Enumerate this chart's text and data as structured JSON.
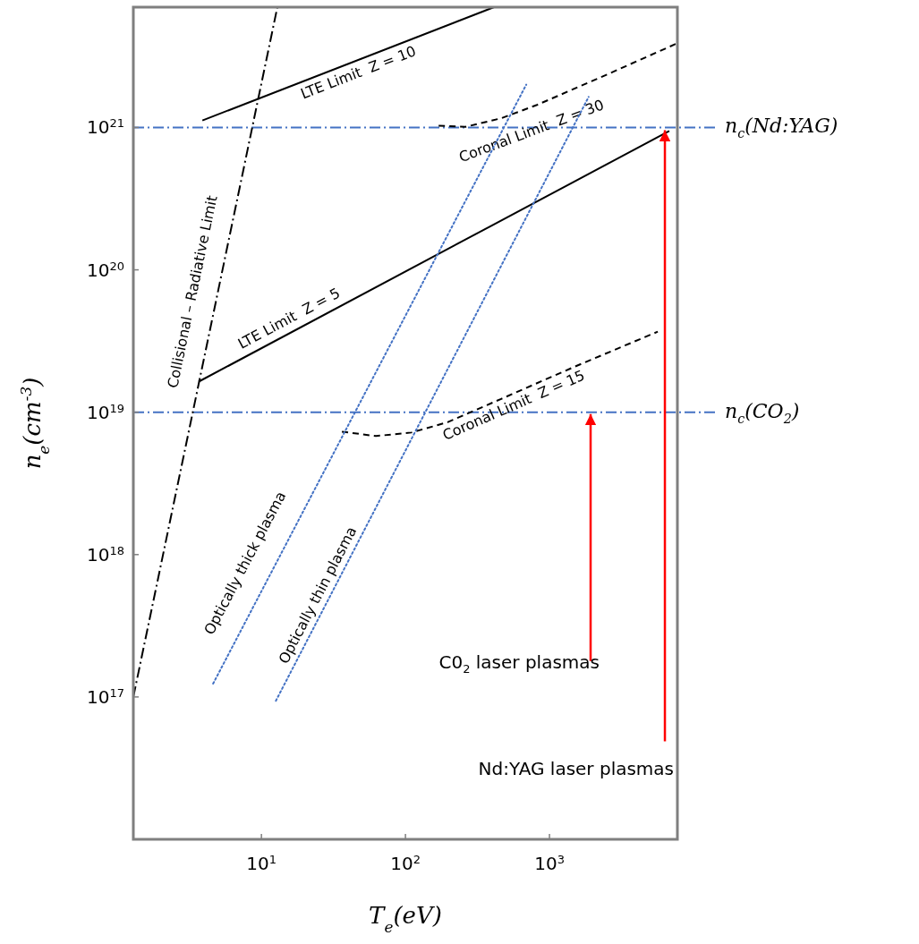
{
  "chart_data": {
    "type": "line",
    "log": "xy",
    "xlabel": "T$_{e}$(eV)",
    "ylabel": "n$_{e}$(cm$^{-3}$)",
    "xlim": [
      1.29,
      7730
    ],
    "ylim": [
      1e+16,
      7e+21
    ],
    "xticks": [
      {
        "value": 10,
        "label": "10$^{1}$"
      },
      {
        "value": 100,
        "label": "10$^{2}$"
      },
      {
        "value": 1000,
        "label": "10$^{3}$"
      }
    ],
    "yticks": [
      {
        "value": 1e+17,
        "label": "10$^{17}$"
      },
      {
        "value": 1e+18,
        "label": "10$^{18}$"
      },
      {
        "value": 1e+19,
        "label": "10$^{19}$"
      },
      {
        "value": 1e+20,
        "label": "10$^{20}$"
      },
      {
        "value": 1e+21,
        "label": "10$^{21}$"
      }
    ],
    "series": [
      {
        "name": "Collisional – Radiative Limit",
        "color": "#000000",
        "line_style": "dashdot",
        "x": [
          1.29,
          12.9
        ],
        "values": [
          1e+17,
          7e+21
        ]
      },
      {
        "name": "LTE Limit  Z = 10",
        "color": "#000000",
        "line_style": "solid",
        "x": [
          3.89,
          412
        ],
        "values": [
          1.12e+21,
          7e+21
        ]
      },
      {
        "name": "LTE Limit  Z = 5",
        "color": "#000000",
        "line_style": "solid",
        "x": [
          3.67,
          6790
        ],
        "values": [
          1.64e+19,
          9.44e+20
        ]
      },
      {
        "name": "Coronal Limit  Z = 30",
        "color": "#000000",
        "line_style": "dashed",
        "x": [
          170,
          261,
          462,
          819,
          2570,
          7700
        ],
        "values": [
          1.03e+21,
          1.01e+21,
          1.16e+21,
          1.44e+21,
          2.38e+21,
          3.9e+21
        ]
      },
      {
        "name": "Coronal Limit  Z = 15",
        "color": "#000000",
        "line_style": "dashed",
        "x": [
          36.2,
          62.4,
          110,
          196,
          462,
          1450,
          5650
        ],
        "values": [
          7.3e+18,
          6.8e+18,
          7.2e+18,
          8.5e+18,
          1.24e+19,
          2.06e+19,
          3.68e+19
        ]
      },
      {
        "name": "Optically thick plasma",
        "color": "#4472c4",
        "line_style": "dotted",
        "x": [
          4.62,
          690
        ],
        "values": [
          1.24e+17,
          2e+21
        ]
      },
      {
        "name": "Optically thin plasma",
        "color": "#4472c4",
        "line_style": "dotted",
        "x": [
          12.6,
          1870
        ],
        "values": [
          9.4e+16,
          1.64e+21
        ]
      }
    ],
    "ref_lines": [
      {
        "axis": "y",
        "value": 1e+21,
        "label": "n$_{c}$(Nd:YAG)",
        "color": "#4472c4",
        "line_style": "dashdot"
      },
      {
        "axis": "y",
        "value": 1e+19,
        "label": "n$_{c}$(CO$_{2}$)",
        "color": "#4472c4",
        "line_style": "dashdot"
      }
    ],
    "annotations": [
      {
        "text": "C0$_{2}$ laser plasmas",
        "x": 1930,
        "y": 1e+19
      },
      {
        "text": "Nd:YAG laser plasmas",
        "x": 6330,
        "y": 1e+21
      }
    ]
  }
}
